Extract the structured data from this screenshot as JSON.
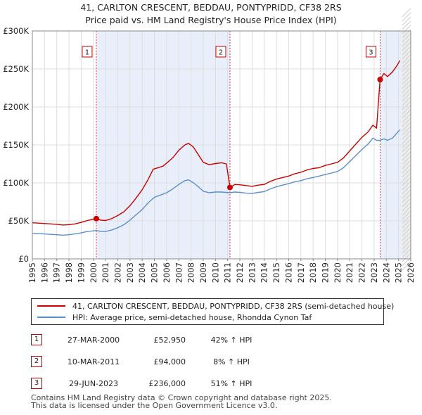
{
  "chart_data": {
    "type": "line",
    "title": [
      "41, CARLTON CRESCENT, BEDDAU, PONTYPRIDD, CF38 2RS",
      "Price paid vs. HM Land Registry's House Price Index (HPI)"
    ],
    "x_ticks": [
      1995,
      1996,
      1997,
      1998,
      1999,
      2000,
      2001,
      2002,
      2003,
      2004,
      2005,
      2006,
      2007,
      2008,
      2009,
      2010,
      2011,
      2012,
      2013,
      2014,
      2015,
      2016,
      2017,
      2018,
      2019,
      2020,
      2021,
      2022,
      2023,
      2024,
      2025,
      2026
    ],
    "xlim": [
      1995,
      2026
    ],
    "ylim": [
      0,
      300000
    ],
    "y_ticks": [
      {
        "value": 0,
        "label": "£0"
      },
      {
        "value": 50000,
        "label": "£50K"
      },
      {
        "value": 100000,
        "label": "£100K"
      },
      {
        "value": 150000,
        "label": "£150K"
      },
      {
        "value": 200000,
        "label": "£200K"
      },
      {
        "value": 250000,
        "label": "£250K"
      },
      {
        "value": 300000,
        "label": "£300K"
      }
    ],
    "grid": true,
    "future_shading_from": 2025.3,
    "series": [
      {
        "name": "41, CARLTON CRESCENT, BEDDAU, PONTYPRIDD, CF38 2RS (semi-detached house)",
        "color": "#cc0000",
        "points": [
          [
            1995.0,
            47500
          ],
          [
            1995.5,
            47000
          ],
          [
            1996.0,
            46500
          ],
          [
            1996.5,
            46000
          ],
          [
            1997.0,
            45500
          ],
          [
            1997.5,
            44500
          ],
          [
            1998.0,
            45000
          ],
          [
            1998.5,
            46000
          ],
          [
            1999.0,
            48000
          ],
          [
            1999.5,
            50500
          ],
          [
            2000.24,
            52950
          ],
          [
            2000.6,
            51000
          ],
          [
            2001.0,
            50500
          ],
          [
            2001.5,
            53000
          ],
          [
            2002.0,
            57000
          ],
          [
            2002.5,
            62000
          ],
          [
            2003.0,
            70000
          ],
          [
            2003.5,
            80000
          ],
          [
            2004.0,
            91000
          ],
          [
            2004.5,
            105000
          ],
          [
            2004.9,
            118000
          ],
          [
            2005.3,
            120000
          ],
          [
            2005.7,
            122000
          ],
          [
            2006.0,
            126000
          ],
          [
            2006.5,
            133000
          ],
          [
            2007.0,
            143000
          ],
          [
            2007.5,
            150000
          ],
          [
            2007.8,
            152000
          ],
          [
            2008.2,
            147000
          ],
          [
            2008.6,
            137000
          ],
          [
            2009.0,
            127000
          ],
          [
            2009.5,
            124000
          ],
          [
            2010.0,
            125500
          ],
          [
            2010.5,
            126500
          ],
          [
            2010.9,
            125000
          ],
          [
            2011.19,
            94000
          ],
          [
            2011.6,
            98000
          ],
          [
            2012.0,
            97500
          ],
          [
            2012.5,
            96500
          ],
          [
            2013.0,
            95500
          ],
          [
            2013.5,
            97000
          ],
          [
            2014.0,
            98000
          ],
          [
            2014.5,
            102000
          ],
          [
            2015.0,
            105000
          ],
          [
            2015.5,
            107000
          ],
          [
            2016.0,
            109000
          ],
          [
            2016.5,
            112000
          ],
          [
            2017.0,
            114000
          ],
          [
            2017.5,
            117000
          ],
          [
            2018.0,
            119000
          ],
          [
            2018.5,
            120000
          ],
          [
            2019.0,
            123000
          ],
          [
            2019.5,
            125000
          ],
          [
            2020.0,
            127000
          ],
          [
            2020.5,
            133000
          ],
          [
            2021.0,
            142000
          ],
          [
            2021.5,
            151000
          ],
          [
            2022.0,
            160000
          ],
          [
            2022.5,
            167000
          ],
          [
            2022.9,
            176000
          ],
          [
            2023.2,
            172000
          ],
          [
            2023.49,
            236000
          ],
          [
            2023.8,
            244000
          ],
          [
            2024.1,
            240000
          ],
          [
            2024.5,
            246000
          ],
          [
            2024.9,
            255000
          ],
          [
            2025.1,
            261000
          ]
        ]
      },
      {
        "name": "HPI: Average price, semi-detached house, Rhondda Cynon Taf",
        "color": "#5b8fc9",
        "points": [
          [
            1995.0,
            33500
          ],
          [
            1995.5,
            33200
          ],
          [
            1996.0,
            32800
          ],
          [
            1996.5,
            32200
          ],
          [
            1997.0,
            31800
          ],
          [
            1997.5,
            31200
          ],
          [
            1998.0,
            31800
          ],
          [
            1998.5,
            32800
          ],
          [
            1999.0,
            34200
          ],
          [
            1999.5,
            36000
          ],
          [
            2000.24,
            37300
          ],
          [
            2000.6,
            36200
          ],
          [
            2001.0,
            36000
          ],
          [
            2001.5,
            38000
          ],
          [
            2002.0,
            41000
          ],
          [
            2002.5,
            45000
          ],
          [
            2003.0,
            51000
          ],
          [
            2003.5,
            58000
          ],
          [
            2004.0,
            65000
          ],
          [
            2004.5,
            74000
          ],
          [
            2005.0,
            81000
          ],
          [
            2005.5,
            84000
          ],
          [
            2006.0,
            87000
          ],
          [
            2006.5,
            92000
          ],
          [
            2007.0,
            98000
          ],
          [
            2007.5,
            103000
          ],
          [
            2007.8,
            104000
          ],
          [
            2008.2,
            100000
          ],
          [
            2008.6,
            95000
          ],
          [
            2009.0,
            89000
          ],
          [
            2009.5,
            87000
          ],
          [
            2010.0,
            88000
          ],
          [
            2010.5,
            88000
          ],
          [
            2011.19,
            87000
          ],
          [
            2011.6,
            88000
          ],
          [
            2012.0,
            87500
          ],
          [
            2012.5,
            86500
          ],
          [
            2013.0,
            86000
          ],
          [
            2013.5,
            87500
          ],
          [
            2014.0,
            88500
          ],
          [
            2014.5,
            92000
          ],
          [
            2015.0,
            95000
          ],
          [
            2015.5,
            97000
          ],
          [
            2016.0,
            99000
          ],
          [
            2016.5,
            101500
          ],
          [
            2017.0,
            103000
          ],
          [
            2017.5,
            105500
          ],
          [
            2018.0,
            107000
          ],
          [
            2018.5,
            109000
          ],
          [
            2019.0,
            111000
          ],
          [
            2019.5,
            113000
          ],
          [
            2020.0,
            115000
          ],
          [
            2020.5,
            120000
          ],
          [
            2021.0,
            128000
          ],
          [
            2021.5,
            136000
          ],
          [
            2022.0,
            144000
          ],
          [
            2022.5,
            151000
          ],
          [
            2022.9,
            159000
          ],
          [
            2023.2,
            156000
          ],
          [
            2023.49,
            156000
          ],
          [
            2023.8,
            158000
          ],
          [
            2024.1,
            156000
          ],
          [
            2024.5,
            159000
          ],
          [
            2024.9,
            166000
          ],
          [
            2025.1,
            170000
          ]
        ]
      }
    ],
    "sales": [
      {
        "num": "1",
        "x": 2000.24,
        "value": 52950,
        "date": "27-MAR-2000",
        "price": "£52,950",
        "hpi": "42% ↑ HPI"
      },
      {
        "num": "2",
        "x": 2011.19,
        "value": 94000,
        "date": "10-MAR-2011",
        "price": "£94,000",
        "hpi": "8% ↑ HPI"
      },
      {
        "num": "3",
        "x": 2023.49,
        "value": 236000,
        "date": "29-JUN-2023",
        "price": "£236,000",
        "hpi": "51% ↑ HPI"
      }
    ],
    "footer": [
      "Contains HM Land Registry data © Crown copyright and database right 2025.",
      "This data is licensed under the Open Government Licence v3.0."
    ]
  }
}
